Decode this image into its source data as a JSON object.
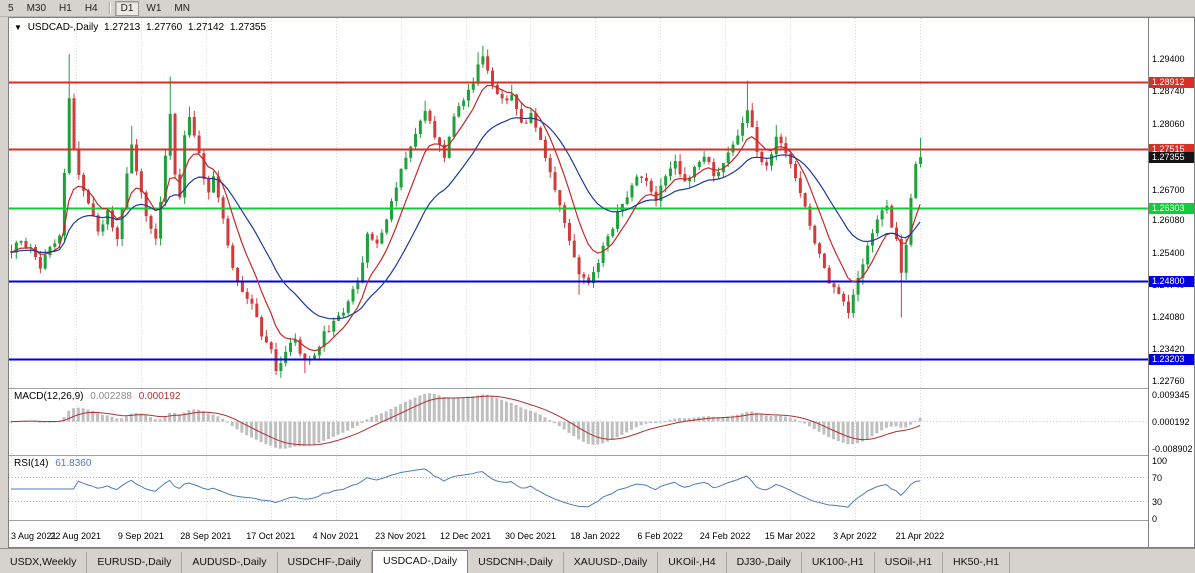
{
  "window": {
    "background": "#d6d3ce",
    "chart_background": "#ffffff",
    "border": "#808080",
    "grid": "#dcdcdc"
  },
  "toolbar": {
    "timeframes": [
      {
        "label": "5",
        "active": false
      },
      {
        "label": "M30",
        "active": false
      },
      {
        "label": "H1",
        "active": false
      },
      {
        "label": "H4",
        "active": false
      },
      {
        "label": "D1",
        "active": true
      },
      {
        "label": "W1",
        "active": false
      },
      {
        "label": "MN",
        "active": false
      }
    ]
  },
  "chart_data": {
    "type": "candlestick",
    "title": {
      "marker": "▼",
      "symbol": "USDCAD-,Daily",
      "open": "1.27213",
      "high": "1.27760",
      "low": "1.27142",
      "close": "1.27355"
    },
    "price_range": {
      "top": 1.30225,
      "bottom": 1.22595
    },
    "y_axis_labels": [
      "1.29400",
      "1.28740",
      "1.28060",
      "1.27380",
      "1.26700",
      "1.26080",
      "1.25400",
      "1.24740",
      "1.24080",
      "1.23420",
      "1.22760"
    ],
    "x_axis_labels": [
      "3 Aug 2021",
      "22 Aug 2021",
      "9 Sep 2021",
      "28 Sep 2021",
      "17 Oct 2021",
      "4 Nov 2021",
      "23 Nov 2021",
      "12 Dec 2021",
      "30 Dec 2021",
      "18 Jan 2022",
      "6 Feb 2022",
      "24 Feb 2022",
      "15 Mar 2022",
      "3 Apr 2022",
      "21 Apr 2022"
    ],
    "levels": [
      {
        "value": 1.28912,
        "label": "1.28912",
        "color": "#d93025",
        "type": "resistance"
      },
      {
        "value": 1.27515,
        "label": "1.27515",
        "color": "#d93025",
        "type": "resistance"
      },
      {
        "value": 1.26303,
        "label": "1.26303",
        "color": "#0ccf35",
        "type": "support"
      },
      {
        "value": 1.248,
        "label": "1.24800",
        "color": "#0000e6",
        "type": "support"
      },
      {
        "value": 1.23203,
        "label": "1.23203",
        "color": "#0000e6",
        "type": "support"
      }
    ],
    "current_price": {
      "value": 1.27355,
      "label": "1.27355",
      "badge_color": "#141414"
    },
    "candles": {
      "count": 190,
      "seed": 20220421,
      "noise": 0.0016,
      "up_color": "#1ea03a",
      "down_color": "#d13b3b",
      "last_candle": {
        "o": 1.27213,
        "h": 1.2776,
        "l": 1.27142,
        "c": 1.27355
      },
      "waypoints": [
        [
          0,
          1.254
        ],
        [
          2,
          1.2565
        ],
        [
          4,
          1.2545
        ],
        [
          6,
          1.251
        ],
        [
          8,
          1.2545
        ],
        [
          10,
          1.258
        ],
        [
          11,
          1.27
        ],
        [
          12,
          1.286
        ],
        [
          13,
          1.276
        ],
        [
          14,
          1.27
        ],
        [
          16,
          1.2645
        ],
        [
          18,
          1.2575
        ],
        [
          20,
          1.262
        ],
        [
          22,
          1.2565
        ],
        [
          24,
          1.27
        ],
        [
          25,
          1.2755
        ],
        [
          26,
          1.27
        ],
        [
          28,
          1.2615
        ],
        [
          30,
          1.2565
        ],
        [
          31,
          1.265
        ],
        [
          32,
          1.274
        ],
        [
          33,
          1.283
        ],
        [
          34,
          1.27
        ],
        [
          35,
          1.2655
        ],
        [
          36,
          1.278
        ],
        [
          37,
          1.2815
        ],
        [
          39,
          1.274
        ],
        [
          41,
          1.2655
        ],
        [
          42,
          1.269
        ],
        [
          44,
          1.2605
        ],
        [
          46,
          1.25
        ],
        [
          48,
          1.2455
        ],
        [
          50,
          1.243
        ],
        [
          52,
          1.237
        ],
        [
          54,
          1.2335
        ],
        [
          55,
          1.23
        ],
        [
          57,
          1.233
        ],
        [
          59,
          1.236
        ],
        [
          61,
          1.231
        ],
        [
          63,
          1.232
        ],
        [
          65,
          1.237
        ],
        [
          68,
          1.2405
        ],
        [
          70,
          1.244
        ],
        [
          72,
          1.248
        ],
        [
          74,
          1.257
        ],
        [
          76,
          1.255
        ],
        [
          78,
          1.261
        ],
        [
          80,
          1.268
        ],
        [
          82,
          1.273
        ],
        [
          84,
          1.279
        ],
        [
          86,
          1.283
        ],
        [
          88,
          1.278
        ],
        [
          90,
          1.274
        ],
        [
          92,
          1.282
        ],
        [
          95,
          1.287
        ],
        [
          97,
          1.292
        ],
        [
          98,
          1.294
        ],
        [
          100,
          1.288
        ],
        [
          102,
          1.285
        ],
        [
          104,
          1.287
        ],
        [
          106,
          1.28
        ],
        [
          108,
          1.282
        ],
        [
          110,
          1.277
        ],
        [
          112,
          1.27
        ],
        [
          114,
          1.264
        ],
        [
          116,
          1.256
        ],
        [
          118,
          1.25
        ],
        [
          120,
          1.248
        ],
        [
          122,
          1.252
        ],
        [
          124,
          1.257
        ],
        [
          126,
          1.262
        ],
        [
          128,
          1.266
        ],
        [
          130,
          1.27
        ],
        [
          132,
          1.268
        ],
        [
          134,
          1.264
        ],
        [
          136,
          1.27
        ],
        [
          138,
          1.272
        ],
        [
          140,
          1.268
        ],
        [
          142,
          1.271
        ],
        [
          144,
          1.274
        ],
        [
          146,
          1.27
        ],
        [
          148,
          1.272
        ],
        [
          150,
          1.276
        ],
        [
          152,
          1.28
        ],
        [
          153,
          1.283
        ],
        [
          155,
          1.275
        ],
        [
          157,
          1.271
        ],
        [
          159,
          1.278
        ],
        [
          161,
          1.275
        ],
        [
          163,
          1.27
        ],
        [
          165,
          1.263
        ],
        [
          167,
          1.256
        ],
        [
          169,
          1.25
        ],
        [
          171,
          1.246
        ],
        [
          174,
          1.242
        ],
        [
          176,
          1.248
        ],
        [
          178,
          1.255
        ],
        [
          180,
          1.261
        ],
        [
          182,
          1.263
        ],
        [
          184,
          1.256
        ],
        [
          185,
          1.25
        ],
        [
          186,
          1.256
        ],
        [
          187,
          1.265
        ],
        [
          188,
          1.2721
        ],
        [
          189,
          1.27355
        ]
      ],
      "high_wicks": [
        [
          12,
          1.2948
        ],
        [
          25,
          1.28
        ],
        [
          33,
          1.2902
        ],
        [
          37,
          1.284
        ],
        [
          86,
          1.2852
        ],
        [
          97,
          1.2952
        ],
        [
          98,
          1.2965
        ],
        [
          104,
          1.2885
        ],
        [
          153,
          1.2893
        ],
        [
          159,
          1.2802
        ]
      ],
      "low_wicks": [
        [
          55,
          1.2286
        ],
        [
          61,
          1.229
        ],
        [
          118,
          1.2452
        ],
        [
          174,
          1.2403
        ],
        [
          185,
          1.2405
        ]
      ]
    },
    "moving_averages": [
      {
        "period": 8,
        "color": "#c62828"
      },
      {
        "period": 22,
        "color": "#1f3b99"
      }
    ],
    "macd": {
      "name": "MACD(12,26,9)",
      "value_main": "0.002288",
      "value_signal": "0.000192",
      "axis_labels": [
        "0.009345",
        "0.000192",
        "-0.008902"
      ],
      "range": {
        "max": 0.009345,
        "min": -0.008902
      },
      "histogram_color": "#bfbfbf",
      "signal_color": "#b03030"
    },
    "rsi": {
      "name": "RSI(14)",
      "value": "61.8360",
      "axis_labels": [
        "100",
        "70",
        "30",
        "0"
      ],
      "levels": [
        70,
        30
      ],
      "line_color": "#4a7ebb"
    }
  },
  "tabs": [
    {
      "label": "USDX,Weekly",
      "active": false
    },
    {
      "label": "EURUSD-,Daily",
      "active": false
    },
    {
      "label": "AUDUSD-,Daily",
      "active": false
    },
    {
      "label": "USDCHF-,Daily",
      "active": false
    },
    {
      "label": "USDCAD-,Daily",
      "active": true
    },
    {
      "label": "USDCNH-,Daily",
      "active": false
    },
    {
      "label": "XAUUSD-,Daily",
      "active": false
    },
    {
      "label": "UKOil-,H4",
      "active": false
    },
    {
      "label": "DJ30-,Daily",
      "active": false
    },
    {
      "label": "UK100-,H1",
      "active": false
    },
    {
      "label": "USOil-,H1",
      "active": false
    },
    {
      "label": "HK50-,H1",
      "active": false
    }
  ]
}
